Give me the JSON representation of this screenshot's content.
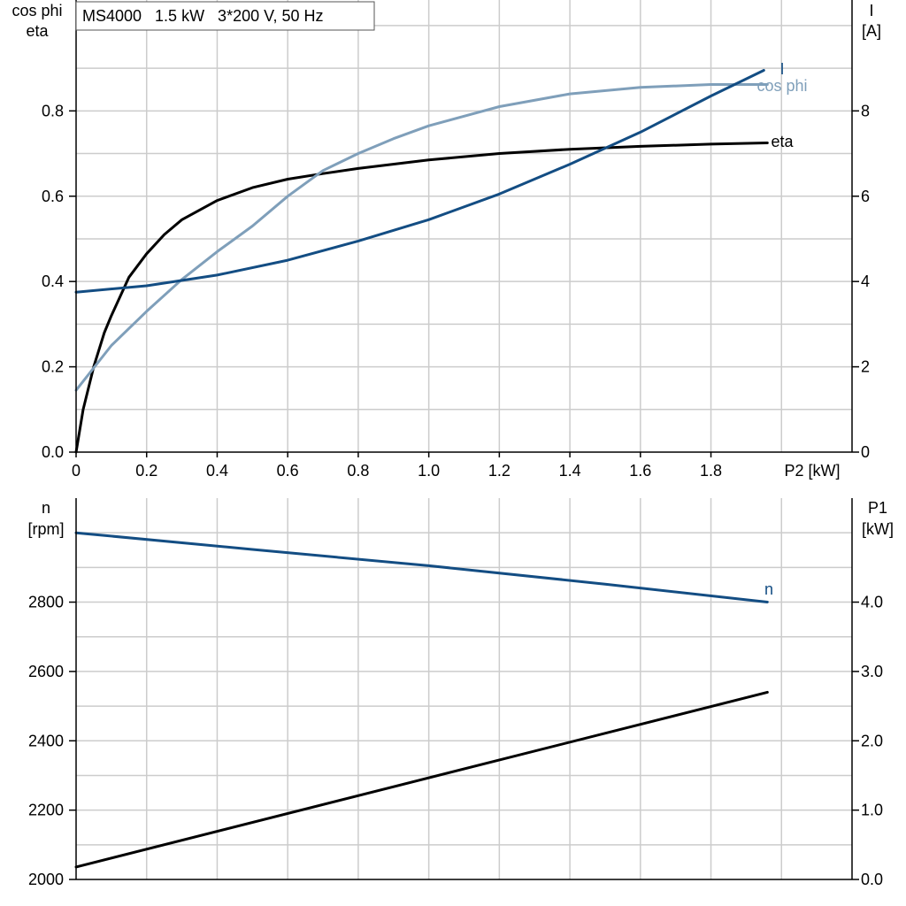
{
  "chart_data": [
    {
      "type": "line",
      "legend_text": "MS4000   1.5 kW   3*200 V, 50 Hz",
      "xlabel": "P2 [kW]",
      "xlim": [
        0,
        2.2
      ],
      "x_ticks": [
        0,
        0.2,
        0.4,
        0.6,
        0.8,
        1.0,
        1.2,
        1.4,
        1.6,
        1.8
      ],
      "x_tick_labels": [
        "0",
        "0.2",
        "0.4",
        "0.6",
        "0.8",
        "1.0",
        "1.2",
        "1.4",
        "1.6",
        "1.8"
      ],
      "ylabel_left": [
        "cos phi",
        "eta"
      ],
      "ylabel_right": [
        "I",
        "[A]"
      ],
      "ylim_left": [
        0,
        1.06
      ],
      "ylim_right": [
        0,
        10.6
      ],
      "y_ticks_left": [
        0,
        0.2,
        0.4,
        0.6,
        0.8
      ],
      "y_tick_labels_left": [
        "0.0",
        "0.2",
        "0.4",
        "0.6",
        "0.8"
      ],
      "y_ticks_right": [
        0,
        2,
        4,
        6,
        8
      ],
      "y_tick_labels_right": [
        "0",
        "2",
        "4",
        "6",
        "8"
      ],
      "grid": true,
      "series": [
        {
          "name": "eta",
          "axis": "left",
          "color": "#000000",
          "x": [
            0,
            0.02,
            0.05,
            0.08,
            0.1,
            0.15,
            0.2,
            0.25,
            0.3,
            0.4,
            0.5,
            0.6,
            0.7,
            0.8,
            1.0,
            1.2,
            1.4,
            1.6,
            1.8,
            1.96
          ],
          "y": [
            0,
            0.1,
            0.2,
            0.28,
            0.32,
            0.41,
            0.465,
            0.51,
            0.545,
            0.59,
            0.62,
            0.64,
            0.653,
            0.665,
            0.685,
            0.7,
            0.71,
            0.717,
            0.722,
            0.725
          ]
        },
        {
          "name": "cos phi",
          "axis": "left",
          "color": "#7f9fba",
          "x": [
            0,
            0.1,
            0.2,
            0.3,
            0.4,
            0.5,
            0.6,
            0.7,
            0.8,
            0.9,
            1.0,
            1.2,
            1.4,
            1.6,
            1.8,
            1.96
          ],
          "y": [
            0.145,
            0.25,
            0.33,
            0.405,
            0.47,
            0.53,
            0.6,
            0.66,
            0.7,
            0.735,
            0.765,
            0.81,
            0.84,
            0.855,
            0.862,
            0.862
          ]
        },
        {
          "name": "I",
          "axis": "right",
          "color": "#134d83",
          "x": [
            0,
            0.2,
            0.4,
            0.6,
            0.8,
            1.0,
            1.2,
            1.4,
            1.6,
            1.8,
            1.95
          ],
          "y": [
            3.75,
            3.9,
            4.15,
            4.5,
            4.95,
            5.45,
            6.05,
            6.75,
            7.5,
            8.35,
            8.95
          ]
        }
      ]
    },
    {
      "type": "line",
      "xlim": [
        0,
        2.2
      ],
      "ylabel_left": [
        "n",
        "[rpm]"
      ],
      "ylabel_right": [
        "P1",
        "[kW]"
      ],
      "ylim_left": [
        2000,
        3100
      ],
      "ylim_right": [
        0,
        5.5
      ],
      "y_ticks_left": [
        2000,
        2200,
        2400,
        2600,
        2800
      ],
      "y_tick_labels_left": [
        "2000",
        "2200",
        "2400",
        "2600",
        "2800"
      ],
      "y_ticks_right": [
        0,
        1,
        2,
        3,
        4
      ],
      "y_tick_labels_right": [
        "0.0",
        "1.0",
        "2.0",
        "3.0",
        "4.0"
      ],
      "grid": true,
      "series": [
        {
          "name": "n",
          "axis": "left",
          "color": "#134d83",
          "x": [
            0,
            0.5,
            1.0,
            1.5,
            1.96
          ],
          "y": [
            3000,
            2952,
            2905,
            2852,
            2800
          ]
        },
        {
          "name": "",
          "axis": "right",
          "color": "#000000",
          "x": [
            0,
            1.96
          ],
          "y": [
            0.18,
            2.7
          ]
        }
      ]
    }
  ]
}
